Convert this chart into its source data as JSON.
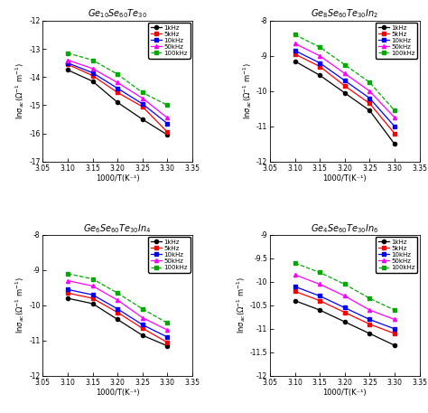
{
  "x_vals": [
    3.1,
    3.15,
    3.2,
    3.25,
    3.3
  ],
  "xlim": [
    3.05,
    3.35
  ],
  "xticks": [
    3.05,
    3.1,
    3.15,
    3.2,
    3.25,
    3.3,
    3.35
  ],
  "xlabel": "1000/T(K⁻¹)",
  "subplots": [
    {
      "title_parts": [
        "Ge",
        "10",
        "Se",
        "60",
        "Te",
        "30",
        "",
        ""
      ],
      "title": "Ge$_{10}$Se$_{60}$Te$_{30}$",
      "ylabel": "lnσ$_{ac}$(Ω$^{-1}$ m$^{-1}$)",
      "ylim": [
        -17,
        -12
      ],
      "yticks": [
        -17,
        -16,
        -15,
        -14,
        -13,
        -12
      ],
      "series": [
        {
          "label": "1kHz",
          "color": "#000000",
          "marker": "o",
          "ls": "-",
          "values": [
            -13.75,
            -14.15,
            -14.9,
            -15.5,
            -16.05
          ]
        },
        {
          "label": "5kHz",
          "color": "#ff0000",
          "marker": "s",
          "ls": "-",
          "values": [
            -13.55,
            -13.95,
            -14.55,
            -15.05,
            -15.95
          ]
        },
        {
          "label": "10kHz",
          "color": "#0000ff",
          "marker": "s",
          "ls": "-",
          "values": [
            -13.5,
            -13.85,
            -14.4,
            -14.95,
            -15.65
          ]
        },
        {
          "label": "50kHz",
          "color": "#ff00ff",
          "marker": "^",
          "ls": "-",
          "values": [
            -13.4,
            -13.7,
            -14.2,
            -14.75,
            -15.45
          ]
        },
        {
          "label": "100kHz",
          "color": "#00aa00",
          "marker": "s",
          "ls": "--",
          "values": [
            -13.15,
            -13.4,
            -13.9,
            -14.55,
            -15.0
          ]
        }
      ]
    },
    {
      "title": "Ge$_8$Se$_{60}$Te$_{30}$In$_2$",
      "ylabel": "lnσ$_{ac}$(Ω$^{-1}$ m$^{-1}$)",
      "ylim": [
        -12,
        -8
      ],
      "yticks": [
        -12,
        -11,
        -10,
        -9,
        -8
      ],
      "series": [
        {
          "label": "1kHz",
          "color": "#000000",
          "marker": "o",
          "ls": "-",
          "values": [
            -9.15,
            -9.55,
            -10.05,
            -10.55,
            -11.5
          ]
        },
        {
          "label": "5kHz",
          "color": "#ff0000",
          "marker": "s",
          "ls": "-",
          "values": [
            -8.95,
            -9.3,
            -9.85,
            -10.35,
            -11.2
          ]
        },
        {
          "label": "10kHz",
          "color": "#0000ff",
          "marker": "s",
          "ls": "-",
          "values": [
            -8.85,
            -9.2,
            -9.7,
            -10.2,
            -11.0
          ]
        },
        {
          "label": "50kHz",
          "color": "#ff00ff",
          "marker": "^",
          "ls": "-",
          "values": [
            -8.65,
            -9.0,
            -9.5,
            -10.0,
            -10.75
          ]
        },
        {
          "label": "100kHz",
          "color": "#00aa00",
          "marker": "s",
          "ls": "--",
          "values": [
            -8.4,
            -8.75,
            -9.25,
            -9.75,
            -10.55
          ]
        }
      ]
    },
    {
      "title": "Ge$_6$Se$_{60}$Te$_{30}$In$_4$",
      "ylabel": "lnσ$_{ac}$(Ω$^{-1}$ m$^{-1}$)",
      "ylim": [
        -12,
        -8
      ],
      "yticks": [
        -12,
        -11,
        -10,
        -9,
        -8
      ],
      "series": [
        {
          "label": "1kHz",
          "color": "#000000",
          "marker": "o",
          "ls": "-",
          "values": [
            -9.8,
            -9.95,
            -10.4,
            -10.85,
            -11.15
          ]
        },
        {
          "label": "5kHz",
          "color": "#ff0000",
          "marker": "s",
          "ls": "-",
          "values": [
            -9.65,
            -9.8,
            -10.2,
            -10.65,
            -11.05
          ]
        },
        {
          "label": "10kHz",
          "color": "#0000ff",
          "marker": "s",
          "ls": "-",
          "values": [
            -9.55,
            -9.7,
            -10.1,
            -10.55,
            -10.9
          ]
        },
        {
          "label": "50kHz",
          "color": "#ff00ff",
          "marker": "^",
          "ls": "-",
          "values": [
            -9.3,
            -9.45,
            -9.85,
            -10.35,
            -10.7
          ]
        },
        {
          "label": "100kHz",
          "color": "#00aa00",
          "marker": "s",
          "ls": "--",
          "values": [
            -9.1,
            -9.25,
            -9.65,
            -10.1,
            -10.5
          ]
        }
      ]
    },
    {
      "title": "Ge$_4$Se$_{60}$Te$_{30}$In$_6$",
      "ylabel": "lnσ$_{ac}$(Ω$^{-1}$ m$^{-1}$)",
      "ylim": [
        -12,
        -9
      ],
      "yticks": [
        -12,
        -11.5,
        -11,
        -10.5,
        -10,
        -9.5,
        -9
      ],
      "series": [
        {
          "label": "1kHz",
          "color": "#000000",
          "marker": "o",
          "ls": "-",
          "values": [
            -10.4,
            -10.6,
            -10.85,
            -11.1,
            -11.35
          ]
        },
        {
          "label": "5kHz",
          "color": "#ff0000",
          "marker": "s",
          "ls": "-",
          "values": [
            -10.2,
            -10.4,
            -10.65,
            -10.9,
            -11.1
          ]
        },
        {
          "label": "10kHz",
          "color": "#0000ff",
          "marker": "s",
          "ls": "-",
          "values": [
            -10.1,
            -10.3,
            -10.55,
            -10.8,
            -11.0
          ]
        },
        {
          "label": "50kHz",
          "color": "#ff00ff",
          "marker": "^",
          "ls": "-",
          "values": [
            -9.85,
            -10.05,
            -10.3,
            -10.6,
            -10.8
          ]
        },
        {
          "label": "100kHz",
          "color": "#00aa00",
          "marker": "s",
          "ls": "--",
          "values": [
            -9.6,
            -9.8,
            -10.05,
            -10.35,
            -10.6
          ]
        }
      ]
    }
  ]
}
